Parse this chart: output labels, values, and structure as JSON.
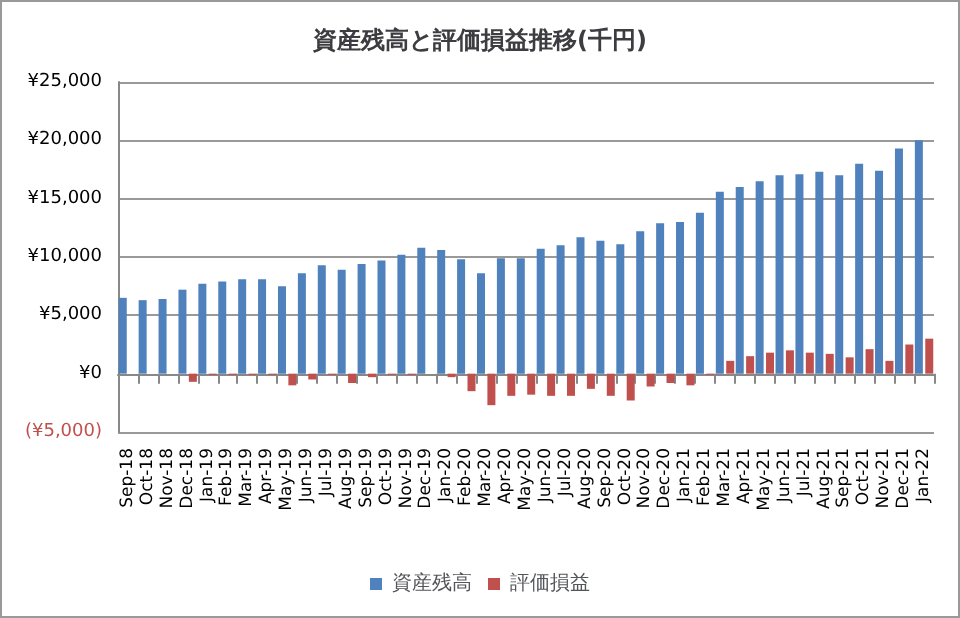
{
  "chart_data": {
    "type": "bar",
    "title": "資産残高と評価損益推移(千円)",
    "categories": [
      "Sep-18",
      "Oct-18",
      "Nov-18",
      "Dec-18",
      "Jan-19",
      "Feb-19",
      "Mar-19",
      "Apr-19",
      "May-19",
      "Jun-19",
      "Jul-19",
      "Aug-19",
      "Sep-19",
      "Oct-19",
      "Nov-19",
      "Dec-19",
      "Jan-20",
      "Feb-20",
      "Mar-20",
      "Apr-20",
      "May-20",
      "Jun-20",
      "Jul-20",
      "Aug-20",
      "Sep-20",
      "Oct-20",
      "Nov-20",
      "Dec-20",
      "Jan-21",
      "Feb-21",
      "Mar-21",
      "Apr-21",
      "May-21",
      "Jun-21",
      "Jul-21",
      "Aug-21",
      "Sep-21",
      "Oct-21",
      "Nov-21",
      "Dec-21",
      "Jan-22"
    ],
    "series": [
      {
        "name": "資産残高",
        "color": "#4f81bd",
        "values": [
          6500,
          6300,
          6400,
          7200,
          7700,
          7900,
          8100,
          8100,
          7500,
          8600,
          9300,
          8900,
          9400,
          9700,
          10200,
          10800,
          10600,
          9800,
          8600,
          9900,
          9900,
          10700,
          11000,
          11700,
          11400,
          11100,
          12200,
          12900,
          13000,
          13800,
          15600,
          16000,
          16500,
          17000,
          17100,
          17300,
          17000,
          18000,
          17400,
          19300,
          20000
        ]
      },
      {
        "name": "評価損益",
        "color": "#c0504d",
        "values": [
          null,
          null,
          null,
          -700,
          -100,
          -100,
          -100,
          -100,
          -1000,
          -500,
          -100,
          -800,
          -300,
          -100,
          -100,
          0,
          -300,
          -1500,
          -2700,
          -1900,
          -1800,
          -1900,
          -1900,
          -1300,
          -1900,
          -2300,
          -1100,
          -800,
          -1000,
          -100,
          1100,
          1500,
          1800,
          2000,
          1800,
          1700,
          1400,
          2100,
          1100,
          2500,
          3000
        ]
      }
    ],
    "ylim": [
      -5000,
      25000
    ],
    "yticks": [
      {
        "value": -5000,
        "label": "(¥5,000)"
      },
      {
        "value": 0,
        "label": "¥0"
      },
      {
        "value": 5000,
        "label": "¥5,000"
      },
      {
        "value": 10000,
        "label": "¥10,000"
      },
      {
        "value": 15000,
        "label": "¥15,000"
      },
      {
        "value": 20000,
        "label": "¥20,000"
      },
      {
        "value": 25000,
        "label": "¥25,000"
      }
    ],
    "grid": "y",
    "legend": "bottom"
  }
}
